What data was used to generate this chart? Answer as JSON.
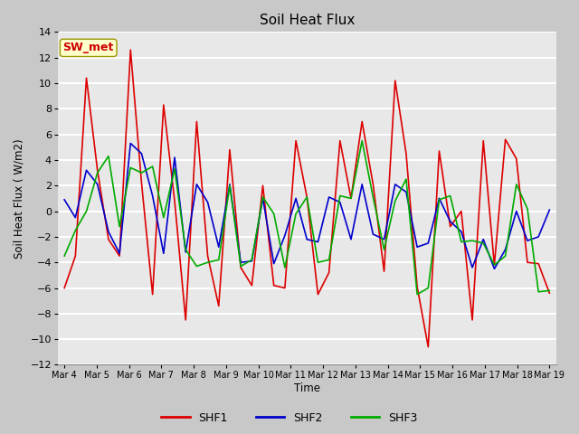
{
  "title": "Soil Heat Flux",
  "ylabel": "Soil Heat Flux (W/m2)",
  "xlabel": "Time",
  "ylim": [
    -12,
    14
  ],
  "yticks": [
    -12,
    -10,
    -8,
    -6,
    -4,
    -2,
    0,
    2,
    4,
    6,
    8,
    10,
    12,
    14
  ],
  "xtick_labels": [
    "Mar 4",
    "Mar 5",
    "Mar 6",
    "Mar 7",
    "Mar 8",
    "Mar 9",
    "Mar 10",
    "Mar 11",
    "Mar 12",
    "Mar 13",
    "Mar 14",
    "Mar 15",
    "Mar 16",
    "Mar 17",
    "Mar 18",
    "Mar 19"
  ],
  "watermark": "SW_met",
  "watermark_color": "#cc0000",
  "watermark_bg": "#ffffcc",
  "fig_bg": "#c8c8c8",
  "plot_bg": "#e8e8e8",
  "grid_color": "#ffffff",
  "series": {
    "SHF1": {
      "color": "#dd0000",
      "linewidth": 1.2,
      "values": [
        -6.0,
        -3.5,
        10.4,
        3.2,
        -2.2,
        -3.5,
        12.6,
        2.2,
        -6.5,
        8.3,
        0.8,
        -8.5,
        7.0,
        -3.5,
        -7.4,
        4.8,
        -4.4,
        -5.8,
        2.0,
        -5.8,
        -6.0,
        5.5,
        1.1,
        -6.5,
        -4.8,
        5.5,
        1.0,
        7.0,
        2.1,
        -4.7,
        10.2,
        4.5,
        -5.9,
        -10.6,
        4.7,
        -1.2,
        0.0,
        -8.5,
        5.5,
        -4.2,
        5.6,
        4.1,
        -4.0,
        -4.1,
        -6.4
      ]
    },
    "SHF2": {
      "color": "#0000cc",
      "linewidth": 1.2,
      "values": [
        0.9,
        -0.5,
        3.2,
        2.1,
        -1.6,
        -3.3,
        5.3,
        4.5,
        1.2,
        -3.3,
        4.2,
        -3.2,
        2.1,
        0.7,
        -2.8,
        2.1,
        -4.0,
        -3.9,
        1.0,
        -4.1,
        -1.9,
        1.0,
        -2.2,
        -2.4,
        1.1,
        0.7,
        -2.2,
        2.1,
        -1.8,
        -2.2,
        2.1,
        1.5,
        -2.8,
        -2.5,
        1.0,
        -0.8,
        -1.6,
        -4.4,
        -2.2,
        -4.5,
        -3.0,
        0.0,
        -2.3,
        -2.0,
        0.1
      ]
    },
    "SHF3": {
      "color": "#00aa00",
      "linewidth": 1.2,
      "values": [
        -3.5,
        -1.5,
        0.0,
        3.0,
        4.3,
        -1.2,
        3.4,
        3.0,
        3.5,
        -0.5,
        3.3,
        -3.0,
        -4.3,
        -4.0,
        -3.8,
        2.0,
        -4.3,
        -3.8,
        1.1,
        -0.2,
        -4.4,
        -0.2,
        1.1,
        -4.0,
        -3.8,
        1.2,
        1.0,
        5.5,
        1.1,
        -3.0,
        0.8,
        2.5,
        -6.5,
        -6.0,
        0.9,
        1.2,
        -2.4,
        -2.3,
        -2.5,
        -4.2,
        -3.5,
        2.1,
        0.2,
        -6.3,
        -6.2
      ]
    }
  }
}
